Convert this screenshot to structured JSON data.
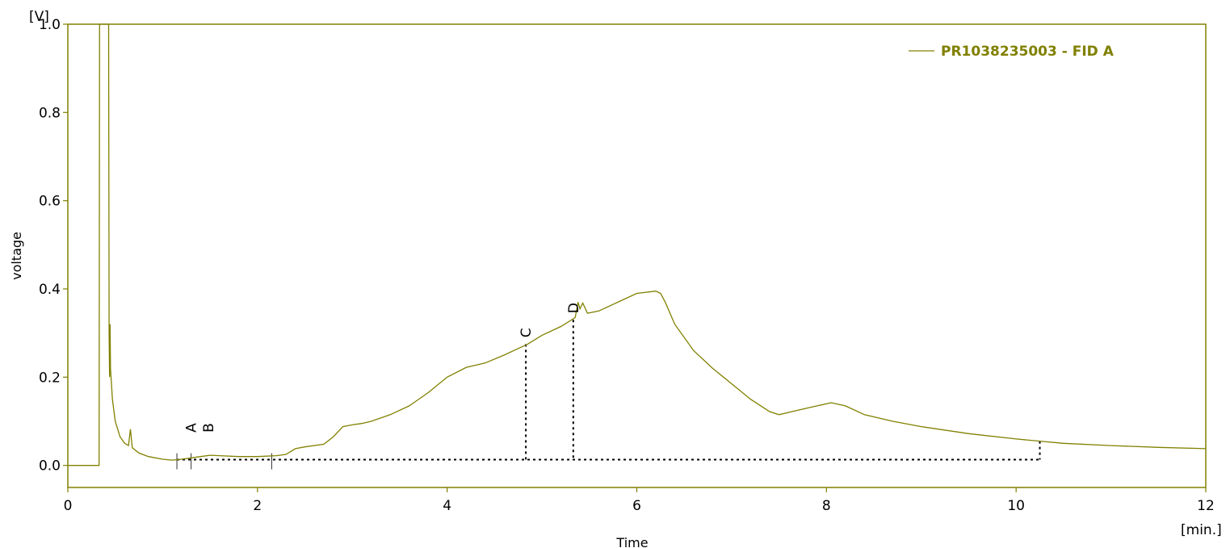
{
  "chart_data": {
    "type": "line",
    "title": "",
    "xlabel": "Time",
    "ylabel": "voltage",
    "x_unit": "[min.]",
    "y_unit": "[V]",
    "xlim": [
      0,
      12
    ],
    "ylim": [
      -0.05,
      1.0
    ],
    "x_ticks": [
      "0",
      "2",
      "4",
      "6",
      "8",
      "10",
      "12"
    ],
    "y_ticks": [
      "0.0",
      "0.2",
      "0.4",
      "0.6",
      "0.8",
      "1.0"
    ],
    "grid": false,
    "legend_position": "top-right",
    "colors": {
      "series": "#808000",
      "frame": "#808000",
      "baseline": "#000000"
    },
    "series": [
      {
        "name": "PR1038235003 - FID A",
        "points": [
          [
            0.0,
            0.0
          ],
          [
            0.33,
            0.0
          ],
          [
            0.335,
            1.0
          ],
          [
            0.43,
            1.0
          ],
          [
            0.435,
            0.3
          ],
          [
            0.44,
            0.2
          ],
          [
            0.445,
            0.32
          ],
          [
            0.45,
            0.22
          ],
          [
            0.47,
            0.15
          ],
          [
            0.5,
            0.1
          ],
          [
            0.55,
            0.065
          ],
          [
            0.6,
            0.05
          ],
          [
            0.64,
            0.045
          ],
          [
            0.66,
            0.082
          ],
          [
            0.68,
            0.04
          ],
          [
            0.75,
            0.028
          ],
          [
            0.85,
            0.02
          ],
          [
            1.0,
            0.014
          ],
          [
            1.1,
            0.012
          ],
          [
            1.2,
            0.014
          ],
          [
            1.4,
            0.02
          ],
          [
            1.5,
            0.023
          ],
          [
            1.6,
            0.022
          ],
          [
            1.8,
            0.02
          ],
          [
            2.0,
            0.02
          ],
          [
            2.2,
            0.022
          ],
          [
            2.3,
            0.025
          ],
          [
            2.4,
            0.038
          ],
          [
            2.5,
            0.042
          ],
          [
            2.7,
            0.048
          ],
          [
            2.8,
            0.065
          ],
          [
            2.9,
            0.088
          ],
          [
            3.0,
            0.092
          ],
          [
            3.1,
            0.095
          ],
          [
            3.2,
            0.1
          ],
          [
            3.4,
            0.115
          ],
          [
            3.6,
            0.135
          ],
          [
            3.8,
            0.165
          ],
          [
            4.0,
            0.2
          ],
          [
            4.2,
            0.222
          ],
          [
            4.4,
            0.232
          ],
          [
            4.6,
            0.25
          ],
          [
            4.85,
            0.275
          ],
          [
            5.0,
            0.295
          ],
          [
            5.2,
            0.315
          ],
          [
            5.35,
            0.335
          ],
          [
            5.38,
            0.37
          ],
          [
            5.4,
            0.355
          ],
          [
            5.43,
            0.368
          ],
          [
            5.48,
            0.345
          ],
          [
            5.6,
            0.35
          ],
          [
            5.8,
            0.37
          ],
          [
            6.0,
            0.39
          ],
          [
            6.2,
            0.395
          ],
          [
            6.25,
            0.39
          ],
          [
            6.3,
            0.37
          ],
          [
            6.4,
            0.32
          ],
          [
            6.6,
            0.26
          ],
          [
            6.8,
            0.22
          ],
          [
            7.0,
            0.185
          ],
          [
            7.2,
            0.15
          ],
          [
            7.4,
            0.122
          ],
          [
            7.5,
            0.115
          ],
          [
            7.7,
            0.125
          ],
          [
            7.9,
            0.135
          ],
          [
            8.05,
            0.142
          ],
          [
            8.2,
            0.135
          ],
          [
            8.4,
            0.115
          ],
          [
            8.7,
            0.1
          ],
          [
            9.0,
            0.088
          ],
          [
            9.5,
            0.072
          ],
          [
            10.0,
            0.06
          ],
          [
            10.25,
            0.055
          ],
          [
            10.5,
            0.05
          ],
          [
            11.0,
            0.045
          ],
          [
            11.5,
            0.041
          ],
          [
            12.0,
            0.038
          ]
        ]
      }
    ],
    "baseline": {
      "x_start": 1.15,
      "x_end": 10.25,
      "y": 0.013
    },
    "integration_markers": [
      1.15,
      1.3,
      2.15
    ],
    "peaks": [
      {
        "label": "A",
        "x": 1.3,
        "y": 0.06
      },
      {
        "label": "B",
        "x": 1.48,
        "y": 0.06
      },
      {
        "label": "C",
        "x": 4.83,
        "y": 0.275,
        "drop_line": true
      },
      {
        "label": "D",
        "x": 5.33,
        "y": 0.33,
        "drop_line": true
      }
    ],
    "end_drop_line": {
      "x": 10.25,
      "y": 0.055
    }
  }
}
